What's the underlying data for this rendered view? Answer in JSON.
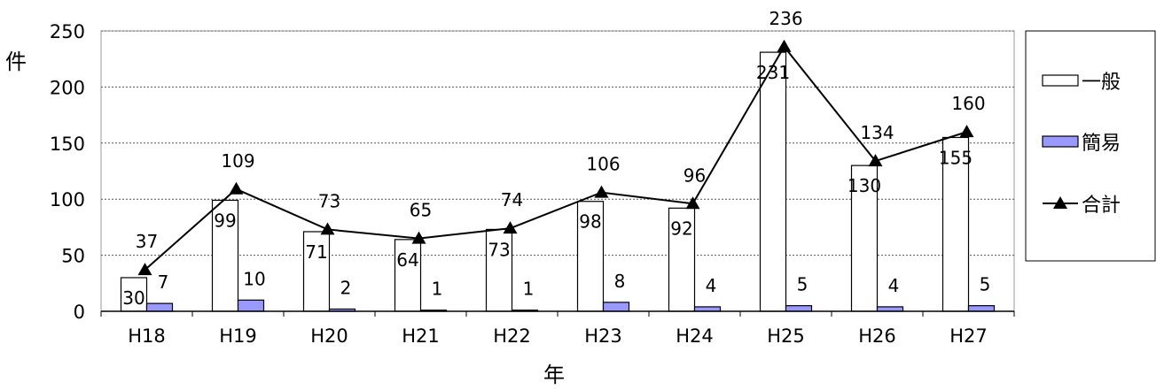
{
  "chart_data": {
    "type": "bar",
    "categories": [
      "H18",
      "H19",
      "H20",
      "H21",
      "H22",
      "H23",
      "H24",
      "H25",
      "H26",
      "H27"
    ],
    "series": [
      {
        "name": "一般",
        "type": "bar",
        "values": [
          30,
          99,
          71,
          64,
          73,
          98,
          92,
          231,
          130,
          155
        ],
        "color": "#ffffff"
      },
      {
        "name": "簡易",
        "type": "bar",
        "values": [
          7,
          10,
          2,
          1,
          1,
          8,
          4,
          5,
          4,
          5
        ],
        "color": "#9999ff"
      },
      {
        "name": "合計",
        "type": "line",
        "values": [
          37,
          109,
          73,
          65,
          74,
          106,
          96,
          236,
          134,
          160
        ],
        "color": "#000000"
      }
    ],
    "xlabel": "年",
    "ylabel": "件",
    "ylim": [
      0,
      250
    ],
    "yticks": [
      0,
      50,
      100,
      150,
      200,
      250
    ],
    "grid": true,
    "legend": "right"
  }
}
